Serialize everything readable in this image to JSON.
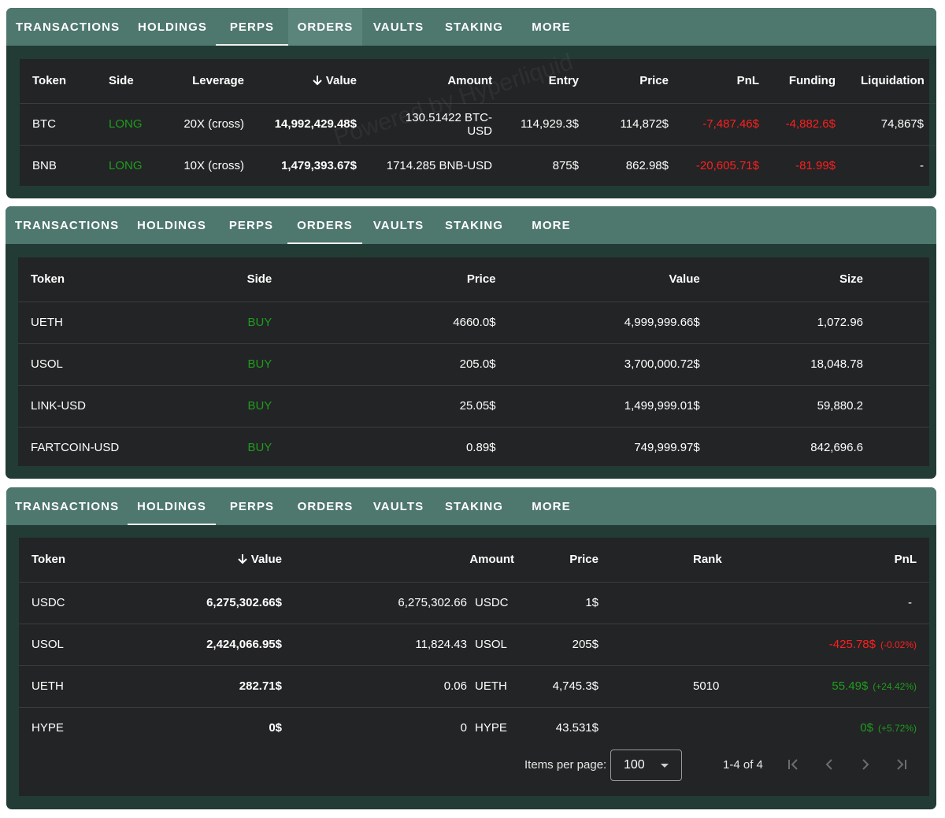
{
  "tabs": [
    "TRANSACTIONS",
    "HOLDINGS",
    "PERPS",
    "ORDERS",
    "VAULTS",
    "STAKING",
    "MORE"
  ],
  "watermark": "Powered by Hyperliquid",
  "perps": {
    "headers": {
      "token": "Token",
      "side": "Side",
      "leverage": "Leverage",
      "value": "Value",
      "amount": "Amount",
      "entry": "Entry",
      "price": "Price",
      "pnl": "PnL",
      "funding": "Funding",
      "liquidation": "Liquidation"
    },
    "rows": [
      {
        "token": "BTC",
        "side": "LONG",
        "leverage": "20X (cross)",
        "value": "14,992,429.48$",
        "amount": "130.51422 BTC-USD",
        "entry": "114,929.3$",
        "price": "114,872$",
        "pnl": "-7,487.46$",
        "funding": "-4,882.6$",
        "liquidation": "74,867$"
      },
      {
        "token": "BNB",
        "side": "LONG",
        "leverage": "10X (cross)",
        "value": "1,479,393.67$",
        "amount": "1714.285 BNB-USD",
        "entry": "875$",
        "price": "862.98$",
        "pnl": "-20,605.71$",
        "funding": "-81.99$",
        "liquidation": "-"
      }
    ]
  },
  "orders": {
    "headers": {
      "token": "Token",
      "side": "Side",
      "price": "Price",
      "value": "Value",
      "size": "Size"
    },
    "rows": [
      {
        "token": "UETH",
        "side": "BUY",
        "price": "4660.0$",
        "value": "4,999,999.66$",
        "size": "1,072.96"
      },
      {
        "token": "USOL",
        "side": "BUY",
        "price": "205.0$",
        "value": "3,700,000.72$",
        "size": "18,048.78"
      },
      {
        "token": "LINK-USD",
        "side": "BUY",
        "price": "25.05$",
        "value": "1,499,999.01$",
        "size": "59,880.2"
      },
      {
        "token": "FARTCOIN-USD",
        "side": "BUY",
        "price": "0.89$",
        "value": "749,999.97$",
        "size": "842,696.6"
      }
    ]
  },
  "holdings": {
    "headers": {
      "token": "Token",
      "value": "Value",
      "amount": "Amount",
      "price": "Price",
      "rank": "Rank",
      "pnl": "PnL"
    },
    "rows": [
      {
        "token": "USDC",
        "value": "6,275,302.66$",
        "amount": "6,275,302.66",
        "unit": "USDC",
        "price": "1$",
        "rank": "",
        "pnl": "-",
        "pct": ""
      },
      {
        "token": "USOL",
        "value": "2,424,066.95$",
        "amount": "11,824.43",
        "unit": "USOL",
        "price": "205$",
        "rank": "",
        "pnl": "-425.78$",
        "pct": "(-0.02%)"
      },
      {
        "token": "UETH",
        "value": "282.71$",
        "amount": "0.06",
        "unit": "UETH",
        "price": "4,745.3$",
        "rank": "5010",
        "pnl": "55.49$",
        "pct": "(+24.42%)"
      },
      {
        "token": "HYPE",
        "value": "0$",
        "amount": "0",
        "unit": "HYPE",
        "price": "43.531$",
        "rank": "",
        "pnl": "0$",
        "pct": "(+5.72%)"
      }
    ],
    "paginator": {
      "items_per_page_label": "Items per page:",
      "page_size": "100",
      "range": "1-4 of 4"
    }
  },
  "colors": {
    "tabbar": "#4e776e",
    "panel": "#223b35",
    "table": "#232425",
    "green": "#1f9c1f",
    "red": "#ff1f1f"
  }
}
